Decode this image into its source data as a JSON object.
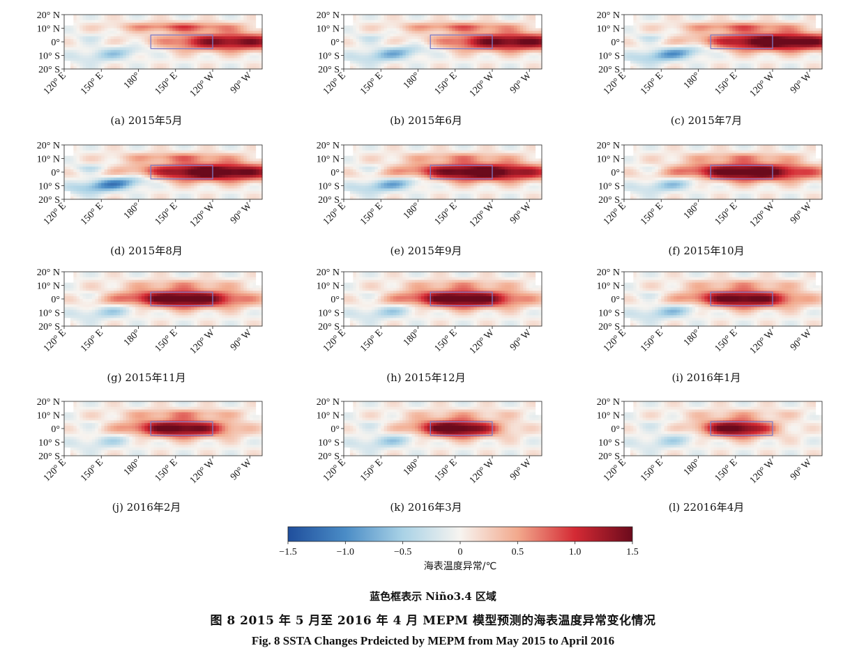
{
  "panels": [
    {
      "label": "(a)   2015年5月"
    },
    {
      "label": "(b)   2015年6月"
    },
    {
      "label": "(c)   2015年7月"
    },
    {
      "label": "(d)   2015年8月"
    },
    {
      "label": "(e)   2015年9月"
    },
    {
      "label": "(f)   2015年10月"
    },
    {
      "label": "(g)   2015年11月"
    },
    {
      "label": "(h)   2015年12月"
    },
    {
      "label": "(i)   2016年1月"
    },
    {
      "label": "(j)   2016年2月"
    },
    {
      "label": "(k)   2016年3月"
    },
    {
      "label": "(l)   22016年4月"
    }
  ],
  "colorbar": {
    "label": "海表温度异常/℃",
    "ticks": [
      "−1.5",
      "−1.0",
      "−0.5",
      "0",
      "0.5",
      "1.0",
      "1.5"
    ],
    "colors": [
      "#1f4e9c",
      "#4a8cc6",
      "#a9d2e6",
      "#f7f4f0",
      "#f2a98d",
      "#d42a34",
      "#6b0a1c"
    ]
  },
  "box_note": "蓝色框表示 Niño3.4 区域",
  "caption_zh": "图 8   2015 年 5 月至 2016 年 4 月 MEPM 模型预测的海表温度异常变化情况",
  "caption_en": "Fig. 8   SSTA Changes Prdeicted by MEPM from May 2015 to April 2016",
  "chart_data": {
    "type": "heatmap",
    "variable": "SSTA",
    "unit": "℃",
    "x_ticks": [
      "120° E",
      "150° E",
      "180°",
      "150° E",
      "120° W",
      "90° W"
    ],
    "y_ticks": [
      "20° N",
      "10° N",
      "0°",
      "10° S",
      "20° S"
    ],
    "x_range_deg_east": [
      120,
      280
    ],
    "y_range_deg": [
      -20,
      20
    ],
    "color_range": [
      -1.5,
      1.5
    ],
    "box": {
      "lon": [
        190,
        240
      ],
      "lat": [
        -5,
        5
      ],
      "color": "#7c7cc8"
    },
    "months": [
      {
        "month": "2015-05",
        "warm_peak": 1.2,
        "warm_center_lon": 255,
        "warm_halfwidth_lon": 55,
        "west_cool": -0.5,
        "north_band": 0.8
      },
      {
        "month": "2015-06",
        "warm_peak": 1.3,
        "warm_center_lon": 255,
        "warm_halfwidth_lon": 55,
        "west_cool": -0.7,
        "north_band": 0.7
      },
      {
        "month": "2015-07",
        "warm_peak": 1.5,
        "warm_center_lon": 245,
        "warm_halfwidth_lon": 60,
        "west_cool": -0.9,
        "north_band": 0.7
      },
      {
        "month": "2015-08",
        "warm_peak": 1.5,
        "warm_center_lon": 240,
        "warm_halfwidth_lon": 60,
        "west_cool": -1.1,
        "north_band": 0.6
      },
      {
        "month": "2015-09",
        "warm_peak": 1.5,
        "warm_center_lon": 230,
        "warm_halfwidth_lon": 60,
        "west_cool": -0.8,
        "north_band": 0.5
      },
      {
        "month": "2015-10",
        "warm_peak": 1.5,
        "warm_center_lon": 220,
        "warm_halfwidth_lon": 55,
        "west_cool": -0.6,
        "north_band": 0.5
      },
      {
        "month": "2015-11",
        "warm_peak": 1.5,
        "warm_center_lon": 215,
        "warm_halfwidth_lon": 50,
        "west_cool": -0.5,
        "north_band": 0.4
      },
      {
        "month": "2015-12",
        "warm_peak": 1.5,
        "warm_center_lon": 215,
        "warm_halfwidth_lon": 48,
        "west_cool": -0.5,
        "north_band": 0.4
      },
      {
        "month": "2016-01",
        "warm_peak": 1.4,
        "warm_center_lon": 215,
        "warm_halfwidth_lon": 45,
        "west_cool": -0.6,
        "north_band": 0.4
      },
      {
        "month": "2016-02",
        "warm_peak": 1.4,
        "warm_center_lon": 212,
        "warm_halfwidth_lon": 42,
        "west_cool": -0.4,
        "north_band": 0.5
      },
      {
        "month": "2016-03",
        "warm_peak": 1.5,
        "warm_center_lon": 210,
        "warm_halfwidth_lon": 35,
        "west_cool": -0.5,
        "north_band": 0.3
      },
      {
        "month": "2016-04",
        "warm_peak": 1.4,
        "warm_center_lon": 210,
        "warm_halfwidth_lon": 30,
        "west_cool": -0.4,
        "north_band": 0.3
      }
    ]
  }
}
